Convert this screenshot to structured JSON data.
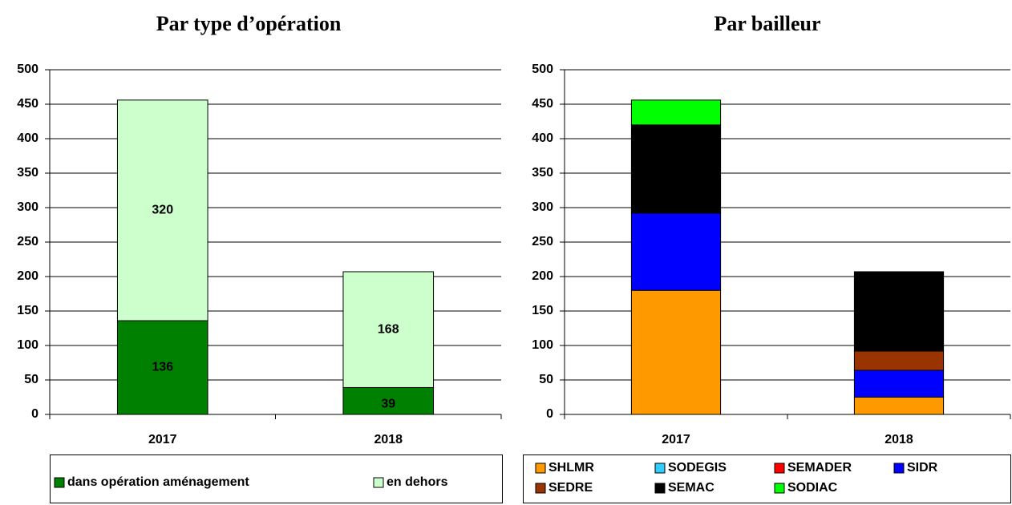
{
  "chart_data": [
    {
      "type": "stacked_bar",
      "title": "Par type d’opération",
      "categories": [
        "2017",
        "2018"
      ],
      "series": [
        {
          "name": "dans opération aménagement",
          "color": "#008000",
          "values": [
            136,
            39
          ]
        },
        {
          "name": "en dehors",
          "color": "#ccffcc",
          "values": [
            320,
            168
          ]
        }
      ],
      "ylim": [
        0,
        500
      ],
      "yticks": [
        0,
        50,
        100,
        150,
        200,
        250,
        300,
        350,
        400,
        450,
        500
      ],
      "grid": true,
      "data_labels": true,
      "legend": "bottom"
    },
    {
      "type": "stacked_bar",
      "title": "Par bailleur",
      "categories": [
        "2017",
        "2018"
      ],
      "series": [
        {
          "name": "SHLMR",
          "color": "#ff9900",
          "values": [
            180,
            25
          ]
        },
        {
          "name": "SODEGIS",
          "color": "#33ccff",
          "values": [
            0,
            0
          ]
        },
        {
          "name": "SEMADER",
          "color": "#ff0000",
          "values": [
            0,
            0
          ]
        },
        {
          "name": "SIDR",
          "color": "#0000ff",
          "values": [
            112,
            39
          ]
        },
        {
          "name": "SEDRE",
          "color": "#993300",
          "values": [
            0,
            28
          ]
        },
        {
          "name": "SEMAC",
          "color": "#000000",
          "values": [
            128,
            115
          ]
        },
        {
          "name": "SODIAC",
          "color": "#00ff00",
          "values": [
            36,
            0
          ]
        }
      ],
      "ylim": [
        0,
        500
      ],
      "yticks": [
        0,
        50,
        100,
        150,
        200,
        250,
        300,
        350,
        400,
        450,
        500
      ],
      "grid": true,
      "data_labels": false,
      "legend": "bottom"
    }
  ]
}
